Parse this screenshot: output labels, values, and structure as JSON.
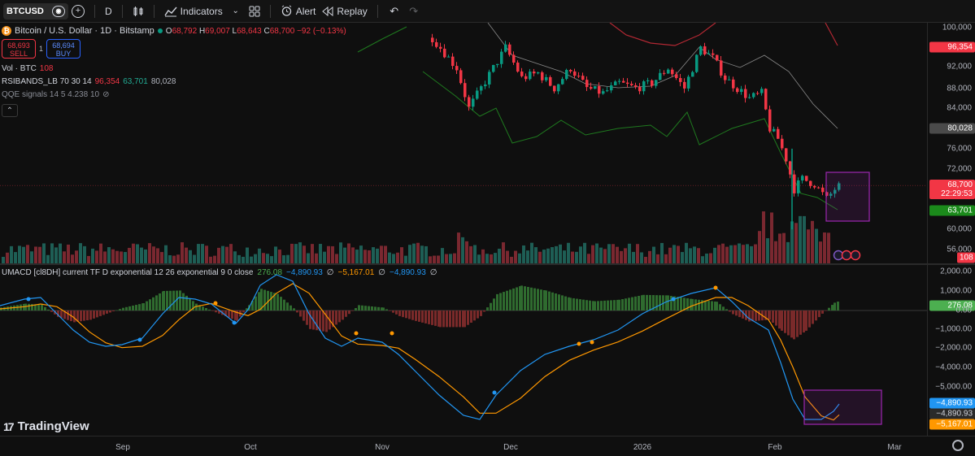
{
  "toolbar": {
    "symbol": "BTCUSD",
    "interval": "D",
    "indicators_label": "Indicators",
    "alert_label": "Alert",
    "replay_label": "Replay",
    "icons": [
      "eye-icon",
      "plus-icon",
      "candles-icon",
      "indicators-icon",
      "chevron-down-icon",
      "layouts-icon",
      "alert-icon",
      "replay-icon",
      "undo-icon",
      "redo-icon"
    ]
  },
  "legend": {
    "title": "Bitcoin / U.S. Dollar · 1D · Bitstamp",
    "open_label": "O",
    "open": "68,792",
    "high_label": "H",
    "high": "69,007",
    "low_label": "L",
    "low": "68,643",
    "close_label": "C",
    "close": "68,700",
    "change": "−92 (−0.13%)",
    "sell_price": "68,693",
    "sell_label": "SELL",
    "spread": "1",
    "buy_price": "68,694",
    "buy_label": "BUY",
    "vol_label": "Vol · BTC",
    "vol_value": "108",
    "rsi_label": "RSIBANDS_LB 70 30 14",
    "rsi_upper": "96,354",
    "rsi_lower": "63,701",
    "rsi_mid": "80,028",
    "qqe_label": "QQE signals 14 5 4.238 10"
  },
  "macd_legend": {
    "label": "UMACD [cl8DH] current TF D exponential 12 26 exponential 9 0 close",
    "hist": "276.08",
    "macd": "−4,890.93",
    "empty1": "∅",
    "signal": "−5,167.01",
    "empty2": "∅",
    "macd2": "−4,890.93",
    "empty3": "∅"
  },
  "price_axis": {
    "labels": [
      "100,000",
      "92,000",
      "88,000",
      "84,000",
      "76,000",
      "72,000",
      "60,000",
      "56,000"
    ],
    "tags": {
      "upper": "96,354",
      "mid": "80,028",
      "last": "68,700",
      "countdown": "22:29:53",
      "lower": "63,701",
      "volume": "108"
    }
  },
  "macd_axis": {
    "labels": [
      "2,000.00",
      "1,000.00",
      "0.00",
      "−1,000.00",
      "−2,000.00",
      "−4,000.00",
      "−5,000.00"
    ],
    "hist_tag": "276.08",
    "macd_tag": "−4,890.93",
    "macd_tag2": "−4,890.93",
    "signal_tag": "−5,167.01"
  },
  "time_axis": [
    "Sep",
    "Oct",
    "Nov",
    "Dec",
    "2026",
    "Feb",
    "Mar"
  ],
  "brand": "TradingView",
  "colors": {
    "up": "#089981",
    "down": "#f23645",
    "macd": "#2196f3",
    "signal": "#ff9800",
    "band_upper": "#b22833",
    "band_lower": "#1f7a1f",
    "band_mid": "#8a8a8a",
    "highlight": "#9c27b0"
  }
}
